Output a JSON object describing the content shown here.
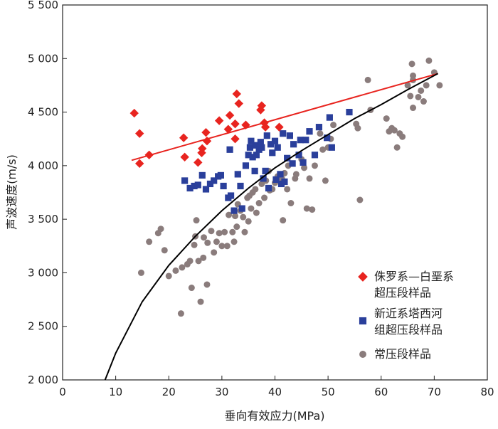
{
  "chart_data": {
    "type": "scatter",
    "xlabel": "垂向有效应力(MPa)",
    "ylabel": "声波速度(m/s)",
    "xlim": [
      0,
      80
    ],
    "ylim": [
      2000,
      5500
    ],
    "x_ticks": [
      "0",
      "10",
      "20",
      "30",
      "40",
      "50",
      "60",
      "70",
      "80"
    ],
    "y_ticks": [
      "2 000",
      "2 500",
      "3 000",
      "3 500",
      "4 000",
      "4 500",
      "5 000",
      "5 500"
    ],
    "grid": false,
    "legend_position": "bottom-right",
    "series": [
      {
        "name": "侏罗系—白垩系超压段样品",
        "legend_lines": [
          "侏罗系—白垩系",
          "超压段样品"
        ],
        "marker": "diamond",
        "color": "#e8241f",
        "points": [
          [
            13.5,
            4490
          ],
          [
            14.5,
            4300
          ],
          [
            14.5,
            4020
          ],
          [
            16.3,
            4100
          ],
          [
            22.8,
            4260
          ],
          [
            23.0,
            4080
          ],
          [
            25.5,
            4030
          ],
          [
            26.2,
            4120
          ],
          [
            26.3,
            4160
          ],
          [
            27.0,
            4310
          ],
          [
            27.2,
            4230
          ],
          [
            29.5,
            4420
          ],
          [
            31.2,
            4340
          ],
          [
            31.5,
            4470
          ],
          [
            32.5,
            4250
          ],
          [
            32.8,
            4670
          ],
          [
            33.2,
            4580
          ],
          [
            32.5,
            4390
          ],
          [
            34.5,
            4380
          ],
          [
            37.3,
            4520
          ],
          [
            37.5,
            4560
          ],
          [
            38.0,
            4400
          ],
          [
            38.2,
            4360
          ],
          [
            40.8,
            4360
          ]
        ]
      },
      {
        "name": "新近系塔西河组超压段样品",
        "legend_lines": [
          "新近系塔西河",
          "组超压段样品"
        ],
        "marker": "square",
        "color": "#2a3f9b",
        "points": [
          [
            23.0,
            3860
          ],
          [
            24.0,
            3790
          ],
          [
            24.8,
            3810
          ],
          [
            25.5,
            3820
          ],
          [
            26.3,
            3910
          ],
          [
            27.0,
            3780
          ],
          [
            27.8,
            3830
          ],
          [
            28.5,
            3860
          ],
          [
            29.3,
            3900
          ],
          [
            29.8,
            3910
          ],
          [
            30.3,
            3810
          ],
          [
            31.2,
            3700
          ],
          [
            31.7,
            3720
          ],
          [
            31.5,
            4150
          ],
          [
            32.3,
            3580
          ],
          [
            33.0,
            3920
          ],
          [
            33.5,
            3810
          ],
          [
            33.8,
            3600
          ],
          [
            34.5,
            4000
          ],
          [
            35.0,
            4100
          ],
          [
            35.3,
            4170
          ],
          [
            35.5,
            4230
          ],
          [
            35.8,
            4080
          ],
          [
            36.2,
            3950
          ],
          [
            36.3,
            4190
          ],
          [
            36.5,
            4100
          ],
          [
            37.0,
            4150
          ],
          [
            37.3,
            4220
          ],
          [
            37.5,
            4170
          ],
          [
            37.8,
            3880
          ],
          [
            38.2,
            3950
          ],
          [
            38.5,
            4280
          ],
          [
            38.8,
            3790
          ],
          [
            39.2,
            4200
          ],
          [
            39.5,
            4120
          ],
          [
            40.0,
            4230
          ],
          [
            40.2,
            3870
          ],
          [
            40.5,
            4170
          ],
          [
            41.0,
            3920
          ],
          [
            41.2,
            3830
          ],
          [
            41.5,
            4300
          ],
          [
            41.8,
            3850
          ],
          [
            42.3,
            4070
          ],
          [
            42.8,
            4280
          ],
          [
            43.3,
            4020
          ],
          [
            43.5,
            4200
          ],
          [
            44.5,
            4100
          ],
          [
            44.8,
            4240
          ],
          [
            45.3,
            4030
          ],
          [
            45.8,
            4240
          ],
          [
            46.5,
            4320
          ],
          [
            47.5,
            4100
          ],
          [
            48.3,
            4360
          ],
          [
            49.8,
            4260
          ],
          [
            50.3,
            4450
          ],
          [
            50.7,
            4170
          ],
          [
            54.0,
            4500
          ]
        ]
      },
      {
        "name": "常压段样品",
        "legend_lines": [
          "常压段样品"
        ],
        "marker": "circle",
        "color": "#8a7c7c",
        "points": [
          [
            14.8,
            3000
          ],
          [
            16.3,
            3290
          ],
          [
            18.0,
            3370
          ],
          [
            18.5,
            3410
          ],
          [
            19.2,
            3210
          ],
          [
            20.0,
            2970
          ],
          [
            21.3,
            3020
          ],
          [
            22.3,
            2620
          ],
          [
            22.5,
            3050
          ],
          [
            23.5,
            3080
          ],
          [
            24.0,
            3110
          ],
          [
            24.3,
            2860
          ],
          [
            24.8,
            3260
          ],
          [
            25.0,
            3340
          ],
          [
            25.2,
            3490
          ],
          [
            25.6,
            3110
          ],
          [
            26.0,
            2730
          ],
          [
            26.5,
            3140
          ],
          [
            26.6,
            3330
          ],
          [
            27.2,
            2890
          ],
          [
            27.3,
            3280
          ],
          [
            28.0,
            3390
          ],
          [
            28.5,
            3190
          ],
          [
            29.0,
            3290
          ],
          [
            29.5,
            3370
          ],
          [
            30.0,
            3250
          ],
          [
            30.5,
            3380
          ],
          [
            31.0,
            3250
          ],
          [
            31.3,
            3540
          ],
          [
            32.0,
            3380
          ],
          [
            32.3,
            3290
          ],
          [
            32.5,
            3530
          ],
          [
            32.8,
            3430
          ],
          [
            33.0,
            3640
          ],
          [
            33.5,
            3580
          ],
          [
            34.0,
            3520
          ],
          [
            34.3,
            3380
          ],
          [
            34.8,
            3700
          ],
          [
            35.0,
            3480
          ],
          [
            35.2,
            3720
          ],
          [
            35.5,
            3600
          ],
          [
            35.8,
            3750
          ],
          [
            36.3,
            3780
          ],
          [
            36.5,
            3560
          ],
          [
            37.0,
            3650
          ],
          [
            37.5,
            3830
          ],
          [
            38.0,
            3700
          ],
          [
            38.3,
            3860
          ],
          [
            38.8,
            3950
          ],
          [
            39.0,
            3770
          ],
          [
            39.5,
            3780
          ],
          [
            40.0,
            3840
          ],
          [
            40.5,
            3900
          ],
          [
            41.3,
            3880
          ],
          [
            41.5,
            3490
          ],
          [
            41.8,
            3930
          ],
          [
            42.3,
            3780
          ],
          [
            42.5,
            4000
          ],
          [
            43.0,
            3650
          ],
          [
            43.8,
            3880
          ],
          [
            44.0,
            3920
          ],
          [
            45.0,
            4060
          ],
          [
            45.5,
            3980
          ],
          [
            46.0,
            3600
          ],
          [
            46.5,
            3880
          ],
          [
            47.0,
            3590
          ],
          [
            47.5,
            4000
          ],
          [
            48.5,
            4300
          ],
          [
            49.0,
            4150
          ],
          [
            49.5,
            3860
          ],
          [
            50.0,
            4170
          ],
          [
            50.5,
            4250
          ],
          [
            51.0,
            4380
          ],
          [
            55.3,
            4390
          ],
          [
            55.6,
            4350
          ],
          [
            56.0,
            3680
          ],
          [
            57.5,
            4800
          ],
          [
            58.0,
            4520
          ],
          [
            61.0,
            4440
          ],
          [
            61.5,
            4320
          ],
          [
            62.0,
            4350
          ],
          [
            62.5,
            4330
          ],
          [
            63.0,
            4170
          ],
          [
            63.5,
            4300
          ],
          [
            64.0,
            4270
          ],
          [
            65.0,
            4750
          ],
          [
            65.5,
            4650
          ],
          [
            65.8,
            4950
          ],
          [
            66.0,
            4840
          ],
          [
            66.0,
            4800
          ],
          [
            66.0,
            4540
          ],
          [
            67.0,
            4640
          ],
          [
            67.5,
            4700
          ],
          [
            68.0,
            4600
          ],
          [
            68.5,
            4750
          ],
          [
            69.0,
            4980
          ],
          [
            70.0,
            4870
          ],
          [
            71.0,
            4750
          ]
        ]
      }
    ],
    "fits": [
      {
        "for_series": "侏罗系—白垩系超压段样品",
        "color": "#e8241f",
        "shape": "linear",
        "points": [
          [
            13.0,
            4050
          ],
          [
            70.7,
            4860
          ]
        ]
      },
      {
        "for_series": "常压段样品",
        "color": "#000000",
        "shape": "power",
        "points": [
          [
            8.0,
            2000
          ],
          [
            10,
            2250
          ],
          [
            15,
            2730
          ],
          [
            20,
            3070
          ],
          [
            25,
            3340
          ],
          [
            30,
            3580
          ],
          [
            35,
            3790
          ],
          [
            40,
            3980
          ],
          [
            45,
            4140
          ],
          [
            50,
            4290
          ],
          [
            55,
            4440
          ],
          [
            60,
            4570
          ],
          [
            65,
            4710
          ],
          [
            70.7,
            4860
          ]
        ]
      }
    ]
  }
}
